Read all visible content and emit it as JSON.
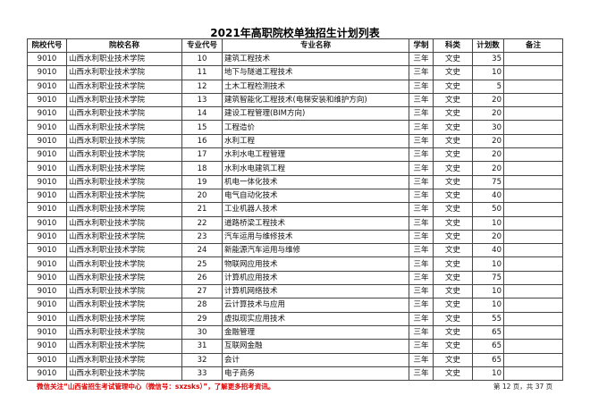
{
  "title": "2021年高职院校单独招生计划列表",
  "headers": [
    "院校代号",
    "院校名称",
    "专业代号",
    "专业名称",
    "学制",
    "科类",
    "计划数",
    "备注"
  ],
  "rows": [
    [
      "9010",
      "山西水利职业技术学院",
      "10",
      "建筑工程技术",
      "三年",
      "文史",
      "35",
      ""
    ],
    [
      "9010",
      "山西水利职业技术学院",
      "11",
      "地下与隧道工程技术",
      "三年",
      "文史",
      "10",
      ""
    ],
    [
      "9010",
      "山西水利职业技术学院",
      "12",
      "土木工程检测技术",
      "三年",
      "文史",
      "5",
      ""
    ],
    [
      "9010",
      "山西水利职业技术学院",
      "13",
      "建筑智能化工程技术(电梯安装和维护方向)",
      "三年",
      "文史",
      "20",
      ""
    ],
    [
      "9010",
      "山西水利职业技术学院",
      "14",
      "建设工程管理(BIM方向)",
      "三年",
      "文史",
      "20",
      ""
    ],
    [
      "9010",
      "山西水利职业技术学院",
      "15",
      "工程造价",
      "三年",
      "文史",
      "30",
      ""
    ],
    [
      "9010",
      "山西水利职业技术学院",
      "16",
      "水利工程",
      "三年",
      "文史",
      "20",
      ""
    ],
    [
      "9010",
      "山西水利职业技术学院",
      "17",
      "水利水电工程管理",
      "三年",
      "文史",
      "20",
      ""
    ],
    [
      "9010",
      "山西水利职业技术学院",
      "18",
      "水利水电建筑工程",
      "三年",
      "文史",
      "20",
      ""
    ],
    [
      "9010",
      "山西水利职业技术学院",
      "19",
      "机电一体化技术",
      "三年",
      "文史",
      "75",
      ""
    ],
    [
      "9010",
      "山西水利职业技术学院",
      "20",
      "电气自动化技术",
      "三年",
      "文史",
      "40",
      ""
    ],
    [
      "9010",
      "山西水利职业技术学院",
      "21",
      "工业机器人技术",
      "三年",
      "文史",
      "50",
      ""
    ],
    [
      "9010",
      "山西水利职业技术学院",
      "22",
      "道路桥梁工程技术",
      "三年",
      "文史",
      "10",
      ""
    ],
    [
      "9010",
      "山西水利职业技术学院",
      "23",
      "汽车运用与维修技术",
      "三年",
      "文史",
      "20",
      ""
    ],
    [
      "9010",
      "山西水利职业技术学院",
      "24",
      "新能源汽车运用与维修",
      "三年",
      "文史",
      "40",
      ""
    ],
    [
      "9010",
      "山西水利职业技术学院",
      "25",
      "物联网应用技术",
      "三年",
      "文史",
      "10",
      ""
    ],
    [
      "9010",
      "山西水利职业技术学院",
      "26",
      "计算机应用技术",
      "三年",
      "文史",
      "75",
      ""
    ],
    [
      "9010",
      "山西水利职业技术学院",
      "27",
      "计算机网络技术",
      "三年",
      "文史",
      "10",
      ""
    ],
    [
      "9010",
      "山西水利职业技术学院",
      "28",
      "云计算技术与应用",
      "三年",
      "文史",
      "10",
      ""
    ],
    [
      "9010",
      "山西水利职业技术学院",
      "29",
      "虚拟现实应用技术",
      "三年",
      "文史",
      "55",
      ""
    ],
    [
      "9010",
      "山西水利职业技术学院",
      "30",
      "金融管理",
      "三年",
      "文史",
      "65",
      ""
    ],
    [
      "9010",
      "山西水利职业技术学院",
      "31",
      "互联网金融",
      "三年",
      "文史",
      "65",
      ""
    ],
    [
      "9010",
      "山西水利职业技术学院",
      "32",
      "会计",
      "三年",
      "文史",
      "65",
      ""
    ],
    [
      "9010",
      "山西水利职业技术学院",
      "33",
      "电子商务",
      "三年",
      "文史",
      "10",
      ""
    ]
  ],
  "footer_note": "微信关注“山西省招生考试管理中心（微信号：sxzsks）”，了解更多招考资讯。",
  "page_info": "第 12 页，共 37 页",
  "colors": {
    "footer_note": "#dd0000"
  }
}
